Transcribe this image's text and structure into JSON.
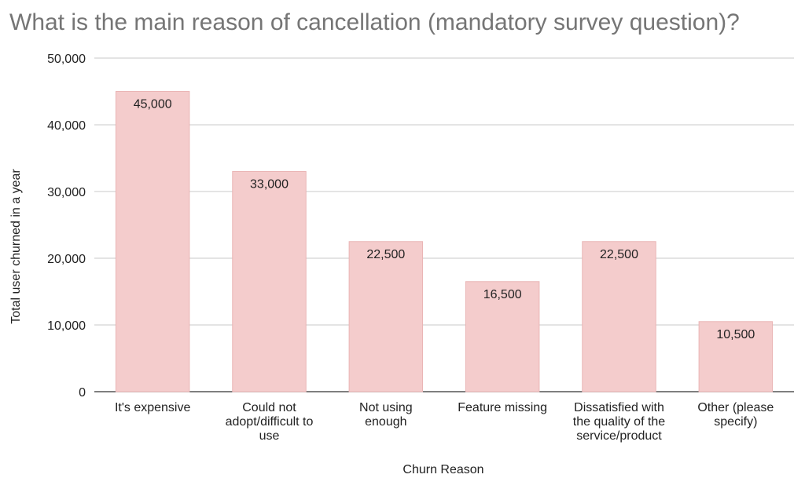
{
  "chart_data": {
    "type": "bar",
    "title": "What is the main reason of cancellation (mandatory survey question)?",
    "xlabel": "Churn Reason",
    "ylabel": "Total user churned in a year",
    "categories": [
      [
        "It's expensive"
      ],
      [
        "Could not",
        "adopt/difficult to",
        "use"
      ],
      [
        "Not using",
        "enough"
      ],
      [
        "Feature missing"
      ],
      [
        "Dissatisfied with",
        "the quality of the",
        "service/product"
      ],
      [
        "Other (please",
        "specify)"
      ]
    ],
    "values": [
      45000,
      33000,
      22500,
      16500,
      22500,
      10500
    ],
    "value_labels": [
      "45,000",
      "33,000",
      "22,500",
      "16,500",
      "22,500",
      "10,500"
    ],
    "yticks": [
      0,
      10000,
      20000,
      30000,
      40000,
      50000
    ],
    "ytick_labels": [
      "0",
      "10,000",
      "20,000",
      "30,000",
      "40,000",
      "50,000"
    ],
    "ylim": [
      0,
      50000
    ],
    "grid": true,
    "legend": "none",
    "bar_color": "#f4cccc",
    "bar_edge_color": "#eab5b5"
  }
}
